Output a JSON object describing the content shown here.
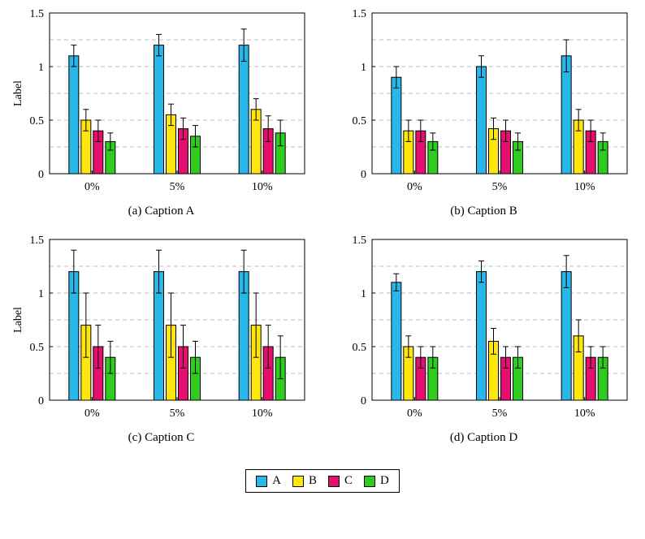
{
  "legend": {
    "items": [
      {
        "label": "A",
        "color": "#29B6E8"
      },
      {
        "label": "B",
        "color": "#FFE70D"
      },
      {
        "label": "C",
        "color": "#E60F6F"
      },
      {
        "label": "D",
        "color": "#2ECC1E"
      }
    ]
  },
  "chart_data": [
    {
      "type": "bar",
      "title": "(a) Caption A",
      "ylabel": "Label",
      "categories": [
        "0%",
        "5%",
        "10%"
      ],
      "ylim": [
        0,
        1.5
      ],
      "yticks": [
        0,
        0.5,
        1,
        1.5
      ],
      "ytick_labels": [
        "0",
        "0.5",
        "1",
        "1.5"
      ],
      "gridlines": [
        0.25,
        0.5,
        0.75,
        1,
        1.25
      ],
      "grid_style": "dashed",
      "legend_position": "shared-bottom",
      "series": [
        {
          "name": "A",
          "values": [
            1.1,
            1.2,
            1.2
          ],
          "errors": [
            0.1,
            0.1,
            0.15
          ]
        },
        {
          "name": "B",
          "values": [
            0.5,
            0.55,
            0.6
          ],
          "errors": [
            0.1,
            0.1,
            0.1
          ]
        },
        {
          "name": "C",
          "values": [
            0.4,
            0.42,
            0.42
          ],
          "errors": [
            0.1,
            0.1,
            0.12
          ]
        },
        {
          "name": "D",
          "values": [
            0.3,
            0.35,
            0.38
          ],
          "errors": [
            0.08,
            0.1,
            0.12
          ]
        }
      ]
    },
    {
      "type": "bar",
      "title": "(b) Caption B",
      "ylabel": "",
      "categories": [
        "0%",
        "5%",
        "10%"
      ],
      "ylim": [
        0,
        1.5
      ],
      "yticks": [
        0,
        0.5,
        1,
        1.5
      ],
      "ytick_labels": [
        "0",
        "0.5",
        "1",
        "1.5"
      ],
      "gridlines": [
        0.25,
        0.5,
        0.75,
        1,
        1.25
      ],
      "grid_style": "dashed",
      "legend_position": "shared-bottom",
      "series": [
        {
          "name": "A",
          "values": [
            0.9,
            1.0,
            1.1
          ],
          "errors": [
            0.1,
            0.1,
            0.15
          ]
        },
        {
          "name": "B",
          "values": [
            0.4,
            0.42,
            0.5
          ],
          "errors": [
            0.1,
            0.1,
            0.1
          ]
        },
        {
          "name": "C",
          "values": [
            0.4,
            0.4,
            0.4
          ],
          "errors": [
            0.1,
            0.1,
            0.1
          ]
        },
        {
          "name": "D",
          "values": [
            0.3,
            0.3,
            0.3
          ],
          "errors": [
            0.08,
            0.08,
            0.08
          ]
        }
      ]
    },
    {
      "type": "bar",
      "title": "(c) Caption C",
      "ylabel": "Label",
      "categories": [
        "0%",
        "5%",
        "10%"
      ],
      "ylim": [
        0,
        1.5
      ],
      "yticks": [
        0,
        0.5,
        1,
        1.5
      ],
      "ytick_labels": [
        "0",
        "0.5",
        "1",
        "1.5"
      ],
      "gridlines": [
        0.25,
        0.5,
        0.75,
        1,
        1.25
      ],
      "grid_style": "dashed",
      "legend_position": "shared-bottom",
      "series": [
        {
          "name": "A",
          "values": [
            1.2,
            1.2,
            1.2
          ],
          "errors": [
            0.2,
            0.2,
            0.2
          ]
        },
        {
          "name": "B",
          "values": [
            0.7,
            0.7,
            0.7
          ],
          "errors": [
            0.3,
            0.3,
            0.3
          ]
        },
        {
          "name": "C",
          "values": [
            0.5,
            0.5,
            0.5
          ],
          "errors": [
            0.2,
            0.2,
            0.2
          ]
        },
        {
          "name": "D",
          "values": [
            0.4,
            0.4,
            0.4
          ],
          "errors": [
            0.15,
            0.15,
            0.2
          ]
        }
      ]
    },
    {
      "type": "bar",
      "title": "(d) Caption D",
      "ylabel": "",
      "categories": [
        "0%",
        "5%",
        "10%"
      ],
      "ylim": [
        0,
        1.5
      ],
      "yticks": [
        0,
        0.5,
        1,
        1.5
      ],
      "ytick_labels": [
        "0",
        "0.5",
        "1",
        "1.5"
      ],
      "gridlines": [
        0.25,
        0.5,
        0.75,
        1,
        1.25
      ],
      "grid_style": "dashed",
      "legend_position": "shared-bottom",
      "series": [
        {
          "name": "A",
          "values": [
            1.1,
            1.2,
            1.2
          ],
          "errors": [
            0.08,
            0.1,
            0.15
          ]
        },
        {
          "name": "B",
          "values": [
            0.5,
            0.55,
            0.6
          ],
          "errors": [
            0.1,
            0.12,
            0.15
          ]
        },
        {
          "name": "C",
          "values": [
            0.4,
            0.4,
            0.4
          ],
          "errors": [
            0.1,
            0.1,
            0.1
          ]
        },
        {
          "name": "D",
          "values": [
            0.4,
            0.4,
            0.4
          ],
          "errors": [
            0.1,
            0.1,
            0.1
          ]
        }
      ]
    }
  ]
}
